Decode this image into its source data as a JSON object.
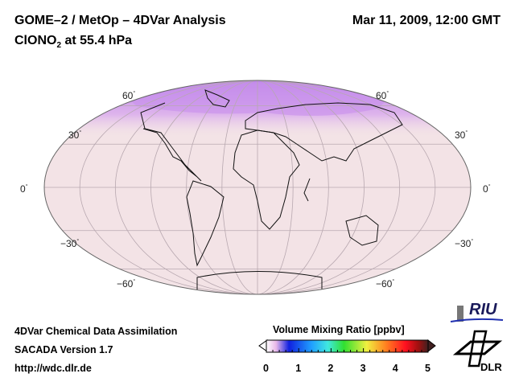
{
  "header": {
    "title_line1": "GOME–2 / MetOp – 4DVar Analysis",
    "species_prefix": "ClONO",
    "species_subscript": "2",
    "species_suffix": " at 55.4 hPa",
    "datetime": "Mar 11, 2009, 12:00 GMT"
  },
  "map": {
    "projection": "Mollweide",
    "lat_labels_left": [
      "60",
      "30",
      "0",
      "−30",
      "−60"
    ],
    "lat_labels_right": [
      "60",
      "30",
      "0",
      "−30",
      "−60"
    ],
    "degree_symbol": "°"
  },
  "colorbar": {
    "title": "Volume Mixing Ratio [ppbv]",
    "ticks": [
      "0",
      "1",
      "2",
      "3",
      "4",
      "5"
    ],
    "range": [
      0,
      5
    ],
    "colors": [
      "#ffffff",
      "#e8b8e8",
      "#1020e0",
      "#20a0ff",
      "#40e8e0",
      "#30e030",
      "#f0f040",
      "#ff8020",
      "#ff1020",
      "#a01010",
      "#402020"
    ]
  },
  "footer": {
    "line1": "4DVar Chemical Data Assimilation",
    "line2": "SACADA Version 1.7",
    "line3": "http://wdc.dlr.de"
  },
  "logos": {
    "riu": "RIU",
    "dlr": "DLR"
  }
}
